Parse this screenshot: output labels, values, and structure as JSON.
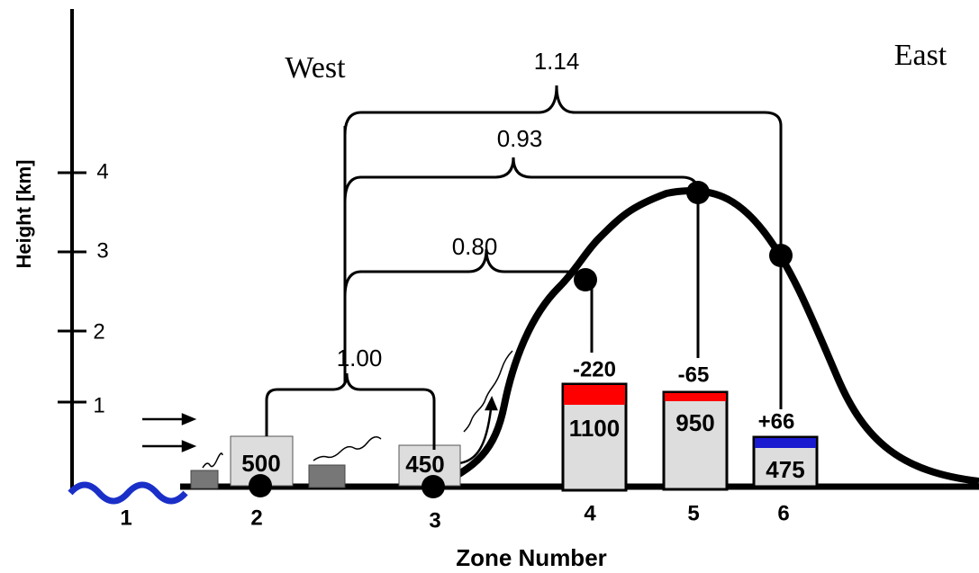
{
  "axis": {
    "label": "Height  [km]",
    "ticks": [
      "1",
      "2",
      "3",
      "4"
    ],
    "x_label": "Zone Number"
  },
  "regions": {
    "west": "West",
    "east": "East"
  },
  "brackets": [
    "1.14",
    "0.93",
    "0.80",
    "1.00"
  ],
  "boxes": [
    "500",
    "450",
    "1100",
    "950",
    "475"
  ],
  "changes": [
    "-220",
    "-65",
    "+66"
  ],
  "zones": [
    "1",
    "2",
    "3",
    "4",
    "5",
    "6"
  ]
}
